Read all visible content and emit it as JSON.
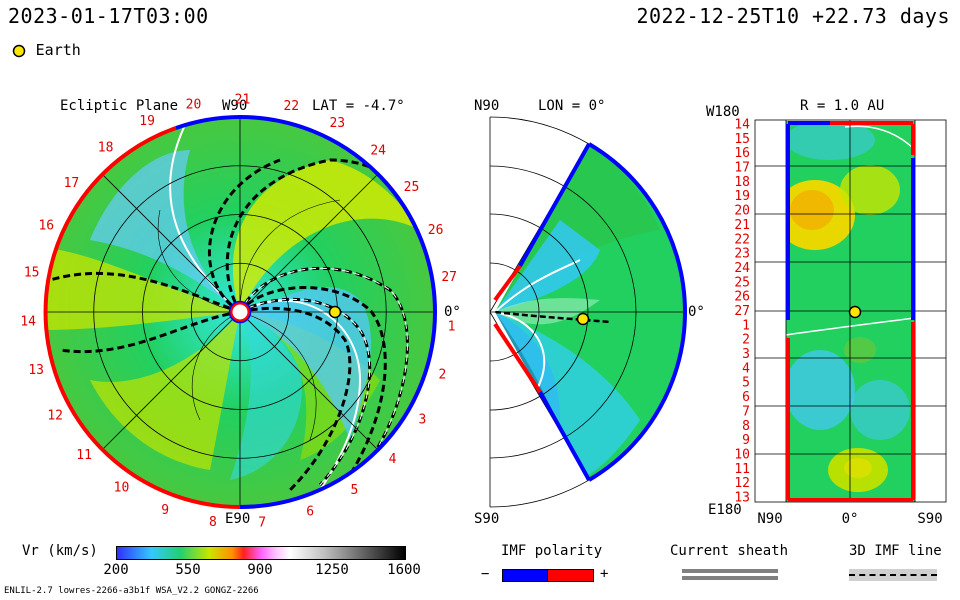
{
  "header": {
    "left_datetime": "2023-01-17T03:00",
    "right_datetime": "2022-12-25T10 +22.73 days",
    "earth_legend": "Earth"
  },
  "colors": {
    "earth": "#ffe600",
    "positive_polarity": "#ff0000",
    "negative_polarity": "#0000ff",
    "current_sheath": "#808080",
    "imf_line": "#000000"
  },
  "chart_data": [
    {
      "type": "heatmap",
      "title": "Ecliptic Plane",
      "subtitle": "LAT = -4.7°",
      "top_label": "W90",
      "bottom_label": "E90",
      "right_label": "0°",
      "carrington_rotation_ticks": [
        "19",
        "20",
        "21",
        "22",
        "23",
        "24",
        "25",
        "26",
        "27",
        "1",
        "2",
        "3",
        "4",
        "5",
        "6",
        "7",
        "8",
        "9",
        "10",
        "11",
        "12",
        "13",
        "14",
        "15",
        "16",
        "17",
        "18"
      ],
      "earth_position": {
        "r_au": 1.0,
        "lon_deg": 0
      }
    },
    {
      "type": "heatmap",
      "title": "LON = 0°",
      "top_label": "N90",
      "bottom_label": "S90",
      "right_label": "0°",
      "earth_position": {
        "r_au": 1.0,
        "lat_deg": 0
      }
    },
    {
      "type": "heatmap",
      "title": "R = 1.0 AU",
      "top_left_label": "W180",
      "bottom_left_label": "E180",
      "x_tick_labels": [
        "N90",
        "0°",
        "S90"
      ],
      "y_tick_labels": [
        "14",
        "15",
        "16",
        "17",
        "18",
        "19",
        "20",
        "21",
        "22",
        "23",
        "24",
        "25",
        "26",
        "27",
        "1",
        "2",
        "3",
        "4",
        "5",
        "6",
        "7",
        "8",
        "9",
        "10",
        "11",
        "12",
        "13"
      ]
    }
  ],
  "colorbar": {
    "label": "Vr (km/s)",
    "ticks": [
      "200",
      "550",
      "900",
      "1250",
      "1600"
    ],
    "range": [
      200,
      1600
    ]
  },
  "legends": {
    "imf_polarity_title": "IMF polarity",
    "imf_minus": "−",
    "imf_plus": "+",
    "current_sheath_title": "Current sheath",
    "imf_line_title": "3D IMF line"
  },
  "footer": {
    "model_info": "ENLIL-2.7 lowres-2266-a3b1f WSA_V2.2 GONGZ-2266"
  }
}
